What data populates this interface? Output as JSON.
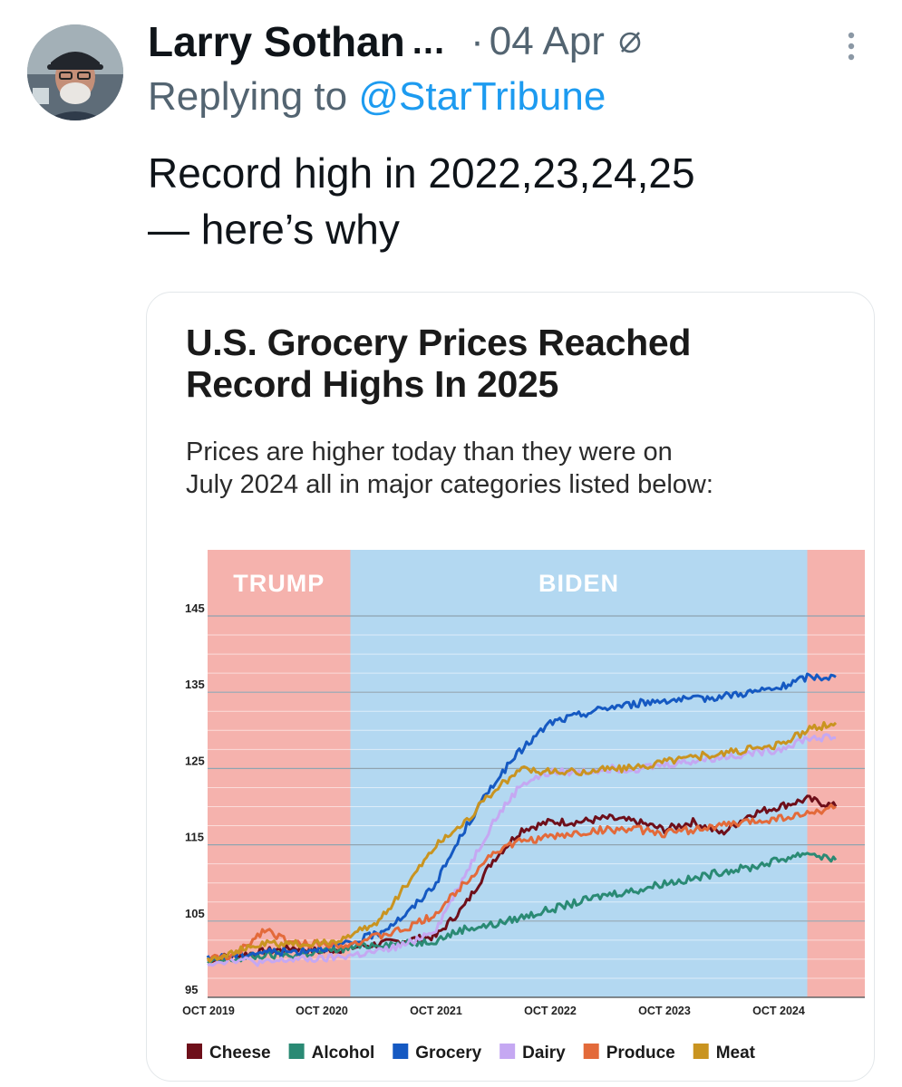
{
  "tweet": {
    "author_name": "Larry Sothan",
    "name_truncation": "...",
    "separator": "·",
    "date": "04 Apr",
    "reply_prefix": "Replying to",
    "reply_handle": "@StarTribune",
    "text_lines": [
      "Record high in 2022,23,24,25",
      "— here’s why"
    ]
  },
  "icons": {
    "avatar": "profile-photo",
    "grok": "slash-circle-icon",
    "more": "vertical-ellipsis-icon"
  },
  "colors": {
    "handle": "#1d9bf0",
    "muted": "#536471",
    "text": "#0f1419",
    "trump_band": "#f5b2ad",
    "biden_band": "#b3d8f1"
  },
  "chart_data": {
    "type": "line",
    "title": "U.S. Grocery Prices Reached Record Highs In 2025",
    "title_lines": [
      "U.S. Grocery Prices Reached",
      "Record Highs In 2025"
    ],
    "subtitle_lines": [
      "Prices are higher today than they were on",
      "July 2024 all in major categories listed below:"
    ],
    "ylim": [
      95,
      145
    ],
    "yticks": [
      95,
      105,
      115,
      125,
      135,
      145
    ],
    "x_range": [
      "2019-10",
      "2025-04"
    ],
    "xticks": [
      {
        "value": "2019-10",
        "label": "OCT 2019"
      },
      {
        "value": "2020-10",
        "label": "OCT 2020"
      },
      {
        "value": "2021-10",
        "label": "OCT 2021"
      },
      {
        "value": "2022-10",
        "label": "OCT 2022"
      },
      {
        "value": "2023-10",
        "label": "OCT 2023"
      },
      {
        "value": "2024-10",
        "label": "OCT 2024"
      }
    ],
    "grid": true,
    "bands": [
      {
        "label": "TRUMP",
        "from": "2019-10",
        "to": "2021-01",
        "color": "#f5b2ad"
      },
      {
        "label": "BIDEN",
        "from": "2021-01",
        "to": "2025-01",
        "color": "#b3d8f1"
      },
      {
        "label": "",
        "from": "2025-01",
        "to": "2025-04",
        "color": "#f5b2ad"
      }
    ],
    "legend_position": "bottom",
    "series": [
      {
        "name": "Cheese",
        "color": "#6e0f1a",
        "x": [
          "2019-10",
          "2020-01",
          "2020-04",
          "2020-07",
          "2020-10",
          "2021-01",
          "2021-04",
          "2021-07",
          "2021-10",
          "2022-01",
          "2022-04",
          "2022-07",
          "2022-10",
          "2023-01",
          "2023-04",
          "2023-07",
          "2023-10",
          "2024-01",
          "2024-04",
          "2024-07",
          "2024-10",
          "2025-01",
          "2025-04"
        ],
        "values": [
          100,
          100.5,
          101,
          101.5,
          101,
          101.5,
          102,
          102.5,
          103,
          107,
          113,
          117,
          118,
          118,
          118.5,
          118,
          117,
          118,
          116.5,
          119,
          120,
          121,
          120
        ]
      },
      {
        "name": "Alcohol",
        "color": "#2a8a74",
        "x": [
          "2019-10",
          "2020-01",
          "2020-04",
          "2020-07",
          "2020-10",
          "2021-01",
          "2021-04",
          "2021-07",
          "2021-10",
          "2022-01",
          "2022-04",
          "2022-07",
          "2022-10",
          "2023-01",
          "2023-04",
          "2023-07",
          "2023-10",
          "2024-01",
          "2024-04",
          "2024-07",
          "2024-10",
          "2025-01",
          "2025-04"
        ],
        "values": [
          99.5,
          100,
          100.5,
          100.5,
          101,
          101.5,
          102,
          102,
          102.5,
          104,
          104.5,
          105.5,
          106.5,
          107.5,
          108.5,
          109,
          110,
          110.5,
          111.5,
          112,
          113,
          114,
          113
        ]
      },
      {
        "name": "Grocery",
        "color": "#1559c2",
        "x": [
          "2019-10",
          "2020-01",
          "2020-04",
          "2020-07",
          "2020-10",
          "2021-01",
          "2021-04",
          "2021-07",
          "2021-10",
          "2022-01",
          "2022-04",
          "2022-07",
          "2022-10",
          "2023-01",
          "2023-04",
          "2023-07",
          "2023-10",
          "2024-01",
          "2024-04",
          "2024-07",
          "2024-10",
          "2025-01",
          "2025-04"
        ],
        "values": [
          100,
          100.5,
          101,
          101,
          101.5,
          102,
          103.5,
          106,
          110,
          117,
          123,
          127.5,
          131,
          132,
          133,
          133.5,
          134,
          134,
          134.5,
          135,
          135.5,
          137,
          137
        ]
      },
      {
        "name": "Dairy",
        "color": "#c5a8f2",
        "x": [
          "2019-10",
          "2020-01",
          "2020-04",
          "2020-07",
          "2020-10",
          "2021-01",
          "2021-04",
          "2021-07",
          "2021-10",
          "2022-01",
          "2022-04",
          "2022-07",
          "2022-10",
          "2023-01",
          "2023-04",
          "2023-07",
          "2023-10",
          "2024-01",
          "2024-04",
          "2024-07",
          "2024-10",
          "2025-01",
          "2025-04"
        ],
        "values": [
          99.5,
          100,
          99.5,
          100,
          100,
          100.5,
          101,
          102,
          104,
          111,
          118,
          123,
          124.5,
          124.5,
          125,
          125,
          125.5,
          126,
          126.5,
          127,
          127.5,
          129,
          129
        ]
      },
      {
        "name": "Produce",
        "color": "#e36a3a",
        "x": [
          "2019-10",
          "2020-01",
          "2020-04",
          "2020-07",
          "2020-10",
          "2021-01",
          "2021-04",
          "2021-07",
          "2021-10",
          "2022-01",
          "2022-04",
          "2022-07",
          "2022-10",
          "2023-01",
          "2023-04",
          "2023-07",
          "2023-10",
          "2024-01",
          "2024-04",
          "2024-07",
          "2024-10",
          "2025-01",
          "2025-04"
        ],
        "values": [
          100,
          100.5,
          104,
          102,
          102,
          102,
          103,
          104,
          106,
          110,
          114,
          115.5,
          116,
          116.5,
          117,
          117,
          116.5,
          117,
          117.5,
          118,
          118.5,
          119,
          120
        ]
      },
      {
        "name": "Meat",
        "color": "#c99420",
        "x": [
          "2019-10",
          "2020-01",
          "2020-04",
          "2020-07",
          "2020-10",
          "2021-01",
          "2021-04",
          "2021-07",
          "2021-10",
          "2022-01",
          "2022-04",
          "2022-07",
          "2022-10",
          "2023-01",
          "2023-04",
          "2023-07",
          "2023-10",
          "2024-01",
          "2024-04",
          "2024-07",
          "2024-10",
          "2025-01",
          "2025-04"
        ],
        "values": [
          100,
          101,
          102,
          102,
          102,
          103,
          105,
          110,
          115,
          118,
          122,
          125,
          124.5,
          124.5,
          125,
          125,
          126,
          126.5,
          127,
          127.5,
          128,
          130,
          131
        ]
      }
    ]
  }
}
